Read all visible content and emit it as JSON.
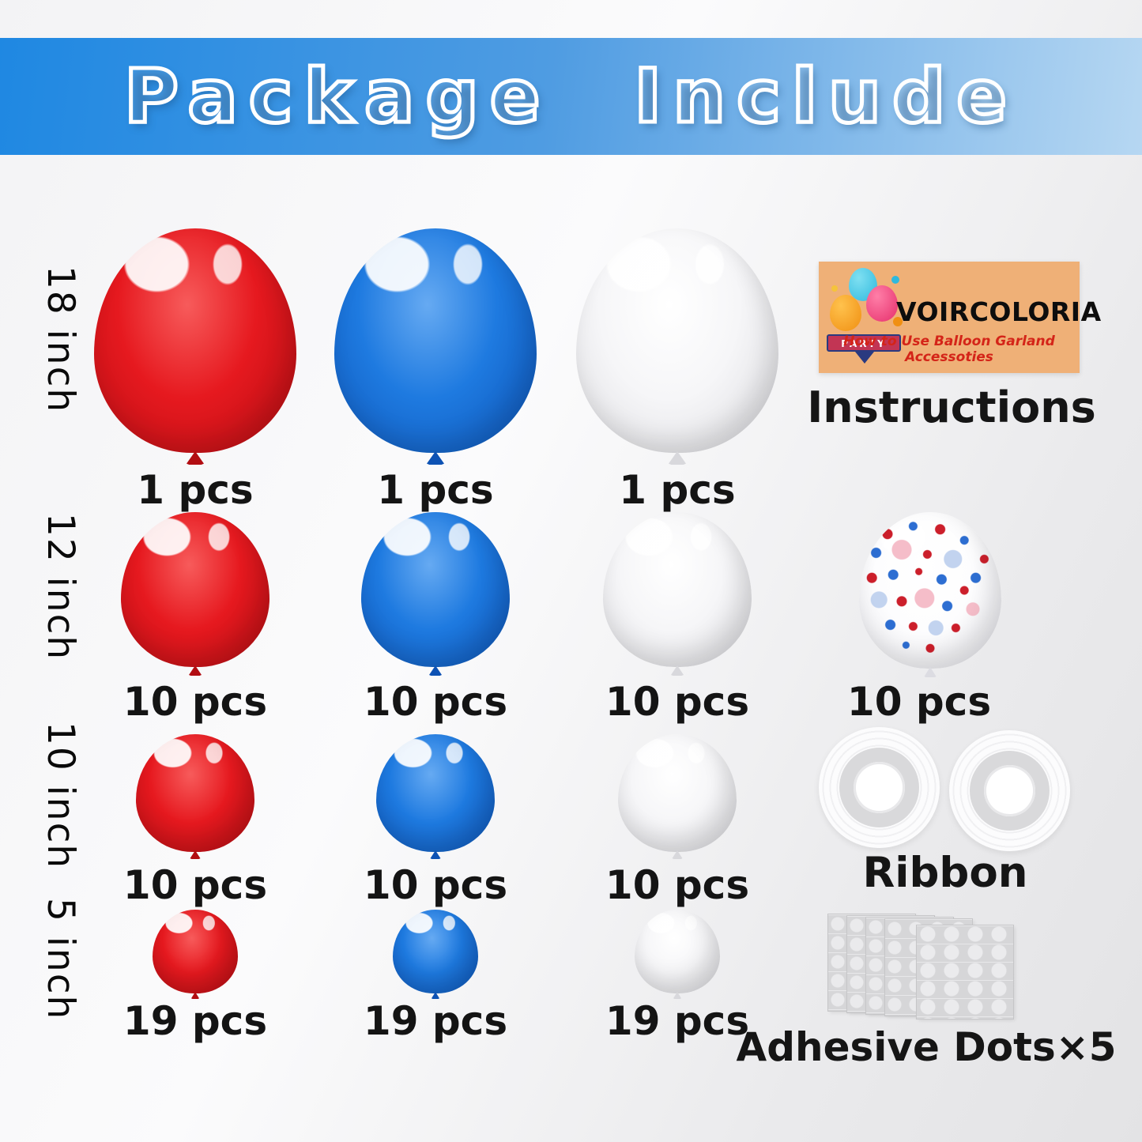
{
  "header": {
    "title": "Package Include"
  },
  "size_labels": [
    {
      "label": "18 inch"
    },
    {
      "label": "12 inch"
    },
    {
      "label": "10 inch"
    },
    {
      "label": "5 inch"
    }
  ],
  "balloon_rows": [
    {
      "size": "18 inch",
      "items": [
        {
          "kind": "balloon",
          "color": "red",
          "count": "1 pcs"
        },
        {
          "kind": "balloon",
          "color": "blue",
          "count": "1 pcs"
        },
        {
          "kind": "balloon",
          "color": "white",
          "count": "1 pcs"
        }
      ]
    },
    {
      "size": "12 inch",
      "items": [
        {
          "kind": "balloon",
          "color": "red",
          "count": "10 pcs"
        },
        {
          "kind": "balloon",
          "color": "blue",
          "count": "10 pcs"
        },
        {
          "kind": "balloon",
          "color": "white",
          "count": "10 pcs"
        },
        {
          "kind": "balloon",
          "color": "confetti",
          "count": "10 pcs"
        }
      ]
    },
    {
      "size": "10 inch",
      "items": [
        {
          "kind": "balloon",
          "color": "red",
          "count": "10 pcs"
        },
        {
          "kind": "balloon",
          "color": "blue",
          "count": "10 pcs"
        },
        {
          "kind": "balloon",
          "color": "white",
          "count": "10 pcs"
        }
      ]
    },
    {
      "size": "5 inch",
      "items": [
        {
          "kind": "balloon",
          "color": "red",
          "count": "19 pcs"
        },
        {
          "kind": "balloon",
          "color": "blue",
          "count": "19 pcs"
        },
        {
          "kind": "balloon",
          "color": "white",
          "count": "19 pcs"
        }
      ]
    }
  ],
  "accessories": {
    "instructions": {
      "brand": "VOIRCOLORIA",
      "badge": "PARTY",
      "tagline": "How to Use Balloon Garland Accessoties",
      "caption": "Instructions"
    },
    "ribbon": {
      "caption": "Ribbon",
      "roll_count": 2
    },
    "adhesive_dots": {
      "caption": "Adhesive Dots×5",
      "sheet_count": 5
    }
  },
  "colors": {
    "banner_blue_start": "#1f88e2",
    "banner_blue_end": "#b6d7f2",
    "balloon_red": "#e6191f",
    "balloon_blue": "#1e7ae0",
    "balloon_white": "#f6f6f8",
    "confetti_dot_red": "#cc1f2b",
    "confetti_dot_blue": "#2d6ed2",
    "card_background": "#efb077",
    "tagline_red": "#d42418",
    "text": "#111111"
  }
}
